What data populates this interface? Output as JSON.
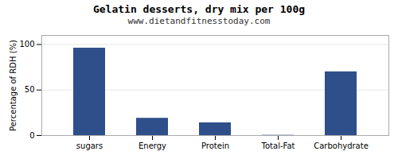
{
  "chart_data": {
    "type": "bar",
    "title": "Gelatin desserts, dry mix per 100g",
    "subtitle": "www.dietandfitnesstoday.com",
    "categories": [
      "sugars",
      "Energy",
      "Protein",
      "Total-Fat",
      "Carbohydrate"
    ],
    "values": [
      96,
      19,
      14,
      0.3,
      70
    ],
    "color": "#2e4f8a",
    "ylabel": "Percentage of RDH (%)",
    "ylim": [
      0,
      110
    ],
    "yticks": [
      0,
      50,
      100
    ],
    "grid": true
  }
}
